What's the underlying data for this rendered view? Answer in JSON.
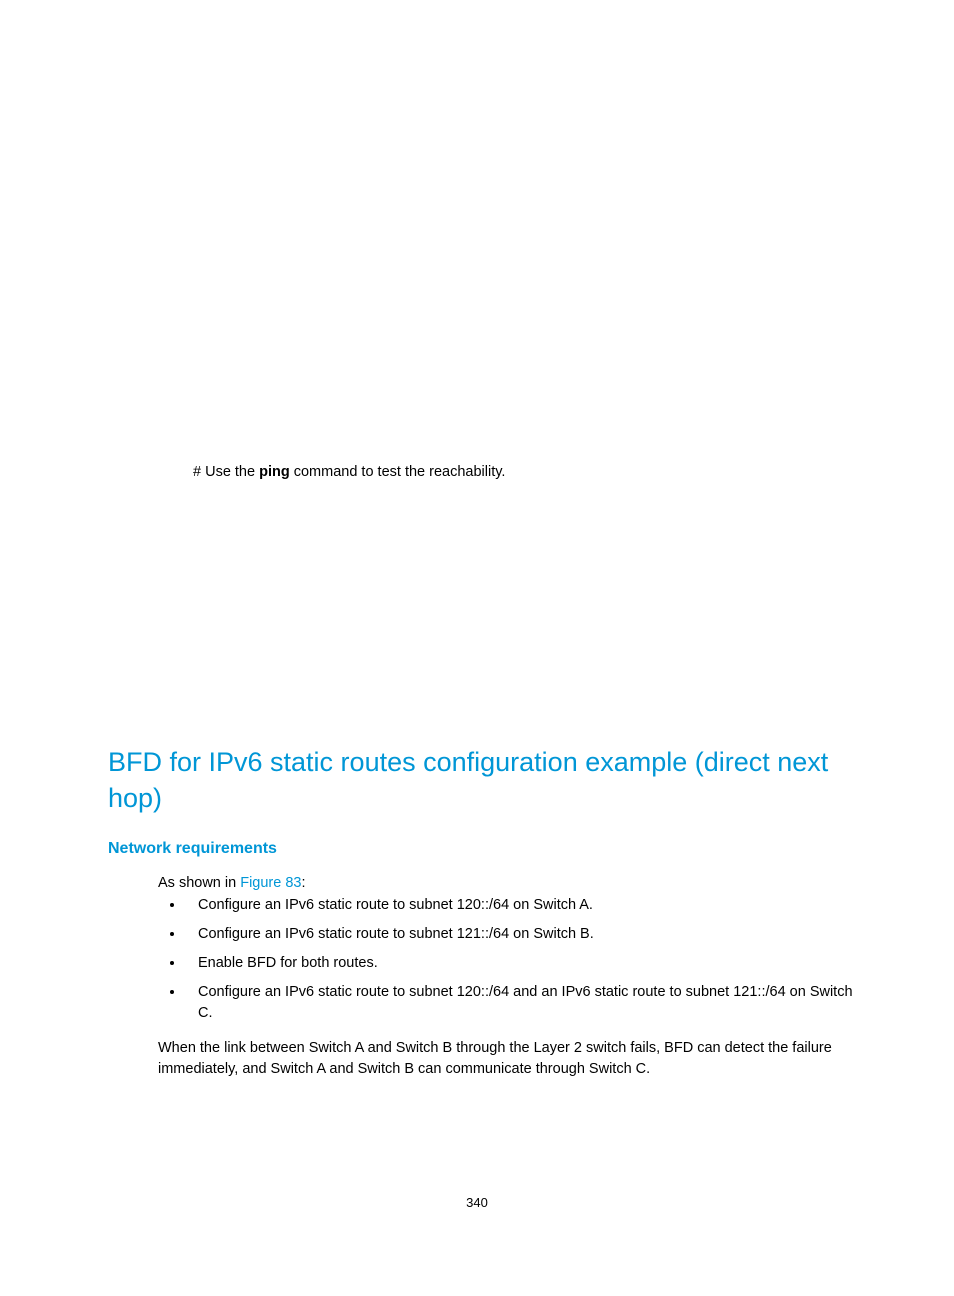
{
  "colors": {
    "accent": "#0096d6",
    "text": "#000000",
    "background": "#ffffff"
  },
  "typography": {
    "body_fontsize_pt": 11,
    "h1_fontsize_pt": 20,
    "h2_fontsize_pt": 12,
    "font_family": "Arial"
  },
  "intro": {
    "prefix": "# Use the ",
    "command": "ping",
    "suffix": " command to test the reachability."
  },
  "heading1": "BFD for IPv6 static routes configuration example (direct next hop)",
  "heading2": "Network requirements",
  "para_intro": {
    "prefix": "As shown in ",
    "figure_ref": "Figure 83",
    "suffix": ":"
  },
  "bullets": [
    "Configure an IPv6 static route to subnet 120::/64 on Switch A.",
    "Configure an IPv6 static route to subnet 121::/64 on Switch B.",
    "Enable BFD for both routes.",
    "Configure an IPv6 static route to subnet 120::/64 and an IPv6 static route to subnet 121::/64 on Switch C."
  ],
  "para_after": "When the link between Switch A and Switch B through the Layer 2 switch fails, BFD can detect the failure immediately, and Switch A and Switch B can communicate through Switch C.",
  "page_number": "340"
}
